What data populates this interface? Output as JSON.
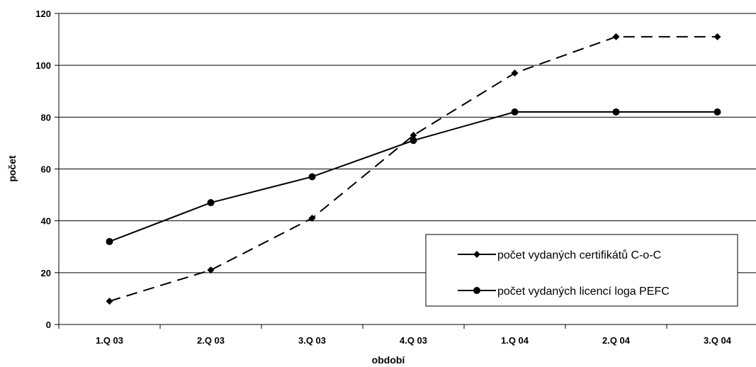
{
  "chart_data": {
    "type": "line",
    "categories": [
      "1.Q 03",
      "2.Q 03",
      "3.Q 03",
      "4.Q 03",
      "1.Q 04",
      "2.Q 04",
      "3.Q 04"
    ],
    "series": [
      {
        "name": "počet vydaných certifikátů C-o-C",
        "values": [
          9,
          21,
          41,
          73,
          97,
          111,
          111
        ],
        "line": "dashed",
        "marker": "diamond"
      },
      {
        "name": "počet vydaných licencí loga PEFC",
        "values": [
          32,
          47,
          57,
          71,
          82,
          82,
          82
        ],
        "line": "solid",
        "marker": "circle"
      }
    ],
    "xlabel": "období",
    "ylabel": "počet",
    "ylim": [
      0,
      120
    ],
    "yticks": [
      0,
      20,
      40,
      60,
      80,
      100,
      120
    ],
    "grid": true,
    "legend_position": "bottom-right",
    "colors": {
      "series": "#000000",
      "grid": "#000000",
      "background": "#ffffff"
    }
  }
}
